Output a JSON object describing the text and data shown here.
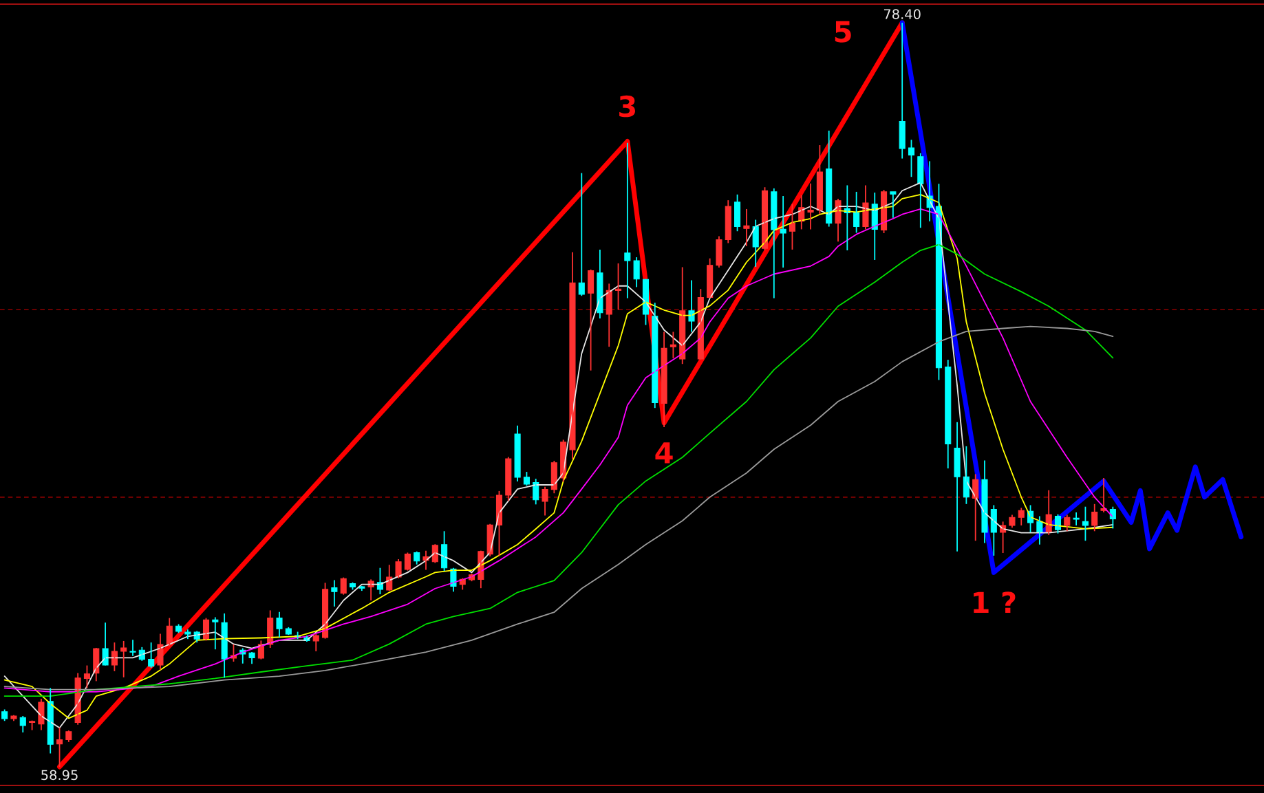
{
  "chart_data": {
    "type": "candlestick",
    "categories": [
      null,
      null,
      null,
      null,
      null,
      null,
      null,
      null,
      null,
      null,
      null,
      null,
      null,
      null,
      null,
      null,
      null,
      null,
      null,
      null,
      null,
      null,
      null,
      null,
      null,
      null,
      null,
      null,
      null,
      null,
      null,
      null,
      null,
      null,
      null,
      null,
      null,
      null,
      null,
      null,
      null,
      null,
      null,
      null,
      null,
      null,
      null,
      null,
      null,
      null,
      null,
      null,
      null,
      null,
      null,
      null,
      null,
      null,
      null,
      null,
      null,
      null,
      null,
      null,
      null,
      null,
      null,
      null,
      null,
      null,
      null,
      null,
      null,
      null,
      null,
      null,
      null,
      null,
      null,
      null,
      null,
      null,
      null,
      null,
      null,
      null,
      null,
      null,
      null,
      null,
      null,
      null,
      null,
      null,
      null,
      null,
      null,
      null,
      null,
      null,
      null,
      null,
      null,
      null,
      null,
      null,
      null,
      null,
      null,
      null,
      null,
      null,
      null,
      null,
      null,
      null,
      null,
      null,
      null,
      null,
      null,
      null,
      null,
      null,
      null,
      null,
      null,
      null,
      null,
      null,
      null,
      null,
      null,
      null,
      null,
      null
    ],
    "ohlc": [
      [
        60.39,
        60.45,
        60.15,
        60.21
      ],
      [
        60.21,
        60.3,
        60.15,
        60.28
      ],
      [
        60.24,
        60.28,
        59.85,
        60.03
      ],
      [
        60.11,
        60.16,
        59.91,
        60.14
      ],
      [
        60.07,
        60.73,
        59.91,
        60.64
      ],
      [
        60.66,
        61.01,
        59.3,
        59.54
      ],
      [
        59.55,
        59.98,
        58.95,
        59.66
      ],
      [
        59.66,
        59.9,
        59.6,
        59.87
      ],
      [
        60.11,
        61.4,
        60.05,
        61.27
      ],
      [
        61.26,
        61.6,
        61.01,
        61.38
      ],
      [
        61.4,
        62.06,
        61.19,
        62.04
      ],
      [
        62.04,
        62.72,
        61.6,
        61.61
      ],
      [
        61.61,
        62.2,
        61.45,
        61.97
      ],
      [
        61.97,
        62.24,
        61.29,
        62.06
      ],
      [
        61.97,
        62.27,
        61.85,
        61.95
      ],
      [
        62.0,
        62.08,
        61.72,
        61.76
      ],
      [
        61.76,
        62.2,
        61.54,
        61.58
      ],
      [
        61.61,
        62.43,
        61.49,
        62.15
      ],
      [
        62.15,
        62.84,
        62.1,
        62.63
      ],
      [
        62.63,
        62.68,
        62.45,
        62.49
      ],
      [
        62.47,
        62.54,
        62.29,
        62.42
      ],
      [
        62.47,
        62.5,
        62.2,
        62.29
      ],
      [
        62.29,
        62.84,
        62.25,
        62.79
      ],
      [
        62.79,
        62.86,
        62.02,
        62.74
      ],
      [
        62.72,
        62.96,
        61.28,
        61.77
      ],
      [
        61.79,
        62.15,
        61.7,
        61.86
      ],
      [
        62.0,
        62.05,
        61.65,
        61.9
      ],
      [
        61.93,
        61.95,
        61.64,
        61.8
      ],
      [
        61.79,
        62.25,
        61.76,
        62.15
      ],
      [
        62.15,
        63.04,
        62.06,
        62.84
      ],
      [
        62.84,
        63.0,
        62.34,
        62.56
      ],
      [
        62.56,
        62.6,
        62.4,
        62.42
      ],
      [
        62.38,
        62.48,
        62.29,
        62.33
      ],
      [
        62.33,
        62.38,
        62.22,
        62.25
      ],
      [
        62.24,
        62.42,
        61.97,
        62.38
      ],
      [
        62.33,
        63.76,
        62.3,
        63.59
      ],
      [
        63.63,
        63.83,
        63.14,
        63.53
      ],
      [
        63.49,
        63.9,
        63.45,
        63.87
      ],
      [
        63.74,
        63.77,
        63.58,
        63.65
      ],
      [
        63.66,
        63.68,
        63.55,
        63.62
      ],
      [
        63.65,
        63.85,
        63.3,
        63.8
      ],
      [
        63.77,
        64.15,
        63.46,
        63.59
      ],
      [
        63.57,
        64.23,
        63.55,
        63.91
      ],
      [
        63.91,
        64.38,
        63.88,
        64.31
      ],
      [
        64.11,
        64.55,
        64.08,
        64.51
      ],
      [
        64.55,
        64.58,
        64.24,
        64.33
      ],
      [
        64.35,
        64.6,
        64.1,
        64.44
      ],
      [
        64.31,
        64.77,
        64.28,
        64.74
      ],
      [
        64.76,
        65.11,
        64.07,
        64.15
      ],
      [
        64.12,
        64.15,
        63.53,
        63.67
      ],
      [
        63.72,
        63.88,
        63.58,
        63.85
      ],
      [
        63.84,
        64.0,
        63.8,
        63.97
      ],
      [
        63.85,
        64.6,
        63.62,
        64.58
      ],
      [
        64.51,
        65.3,
        64.45,
        65.27
      ],
      [
        65.27,
        66.16,
        64.46,
        66.05
      ],
      [
        66.05,
        67.05,
        65.9,
        67.0
      ],
      [
        67.65,
        67.87,
        66.41,
        66.52
      ],
      [
        66.52,
        66.66,
        66.3,
        66.34
      ],
      [
        66.38,
        66.48,
        65.81,
        65.93
      ],
      [
        65.89,
        66.27,
        65.52,
        66.2
      ],
      [
        66.2,
        66.95,
        66.1,
        66.9
      ],
      [
        66.5,
        67.5,
        66.4,
        67.44
      ],
      [
        67.24,
        72.4,
        67.0,
        71.6
      ],
      [
        71.6,
        74.47,
        71.26,
        71.3
      ],
      [
        71.33,
        71.95,
        69.31,
        71.92
      ],
      [
        71.86,
        72.47,
        70.67,
        70.82
      ],
      [
        70.78,
        71.58,
        69.93,
        71.4
      ],
      [
        71.4,
        72.11,
        70.9,
        71.44
      ],
      [
        72.38,
        75.26,
        71.2,
        72.18
      ],
      [
        72.18,
        72.27,
        71.49,
        71.7
      ],
      [
        71.69,
        71.7,
        70.5,
        70.78
      ],
      [
        70.73,
        71.08,
        68.33,
        68.47
      ],
      [
        68.45,
        70.32,
        67.83,
        69.89
      ],
      [
        69.93,
        70.32,
        69.63,
        69.98
      ],
      [
        69.61,
        72.01,
        69.48,
        70.87
      ],
      [
        70.87,
        71.67,
        70.32,
        70.6
      ],
      [
        69.61,
        71.44,
        69.6,
        71.22
      ],
      [
        71.22,
        72.24,
        71.2,
        72.06
      ],
      [
        72.06,
        72.82,
        72.0,
        72.73
      ],
      [
        72.73,
        73.76,
        72.64,
        73.6
      ],
      [
        73.71,
        73.91,
        72.95,
        73.07
      ],
      [
        73.02,
        73.53,
        72.56,
        73.09
      ],
      [
        73.07,
        73.25,
        72.02,
        72.54
      ],
      [
        72.5,
        74.1,
        72.45,
        74.01
      ],
      [
        73.98,
        74.07,
        71.2,
        72.99
      ],
      [
        73.0,
        73.87,
        72.0,
        72.9
      ],
      [
        72.95,
        73.66,
        72.47,
        73.16
      ],
      [
        73.21,
        73.89,
        73.0,
        73.57
      ],
      [
        73.45,
        74.2,
        73.0,
        73.5
      ],
      [
        73.5,
        75.2,
        73.4,
        74.5
      ],
      [
        74.58,
        75.58,
        73.07,
        73.16
      ],
      [
        73.16,
        73.8,
        72.68,
        73.75
      ],
      [
        73.54,
        74.15,
        72.45,
        73.43
      ],
      [
        73.44,
        73.98,
        72.91,
        73.07
      ],
      [
        73.07,
        74.15,
        73.0,
        73.69
      ],
      [
        73.66,
        73.96,
        72.2,
        73.0
      ],
      [
        72.98,
        74.03,
        72.9,
        73.98
      ],
      [
        73.98,
        73.98,
        73.3,
        73.92
      ],
      [
        75.82,
        78.4,
        74.85,
        75.11
      ],
      [
        75.13,
        75.34,
        74.37,
        74.94
      ],
      [
        74.9,
        74.99,
        73.04,
        74.19
      ],
      [
        73.87,
        74.78,
        73.21,
        73.57
      ],
      [
        73.6,
        74.19,
        69.06,
        69.38
      ],
      [
        69.4,
        69.59,
        66.75,
        67.39
      ],
      [
        67.28,
        67.96,
        64.58,
        66.53
      ],
      [
        66.53,
        67.33,
        65.82,
        66.0
      ],
      [
        65.97,
        66.6,
        64.86,
        66.46
      ],
      [
        66.46,
        66.96,
        64.8,
        65.08
      ],
      [
        65.68,
        65.79,
        64.47,
        65.08
      ],
      [
        65.08,
        65.36,
        64.54,
        65.26
      ],
      [
        65.26,
        65.54,
        65.2,
        65.47
      ],
      [
        65.47,
        65.72,
        65.26,
        65.65
      ],
      [
        65.63,
        65.79,
        65.08,
        65.33
      ],
      [
        65.36,
        65.5,
        64.76,
        65.08
      ],
      [
        65.08,
        66.18,
        65.01,
        65.54
      ],
      [
        65.5,
        65.55,
        65.05,
        65.15
      ],
      [
        65.26,
        65.54,
        65.11,
        65.47
      ],
      [
        65.45,
        65.6,
        65.26,
        65.42
      ],
      [
        65.36,
        65.75,
        64.86,
        65.26
      ],
      [
        65.26,
        65.82,
        65.11,
        65.61
      ],
      [
        65.65,
        66.5,
        65.6,
        65.7
      ],
      [
        65.68,
        65.75,
        65.18,
        65.43
      ],
      null,
      null,
      null,
      null,
      null,
      null,
      null,
      null,
      null,
      null,
      null,
      null,
      null,
      null
    ],
    "colors": [
      "#00ffff",
      "#ff3232",
      "#00ffff",
      "#ff3232",
      "#ff3232",
      "#00ffff",
      "#ff3232",
      "#ff3232",
      "#ff3232",
      "#ff3232",
      "#ff3232",
      "#00ffff",
      "#ff3232",
      "#ff3232",
      "#00ffff",
      "#00ffff",
      "#00ffff",
      "#ff3232",
      "#ff3232",
      "#00ffff",
      "#00ffff",
      "#00ffff",
      "#ff3232",
      "#00ffff",
      "#00ffff",
      "#ff3232",
      "#00ffff",
      "#00ffff",
      "#ff3232",
      "#ff3232",
      "#00ffff",
      "#00ffff",
      "#00ffff",
      "#00ffff",
      "#ff3232",
      "#ff3232",
      "#00ffff",
      "#ff3232",
      "#00ffff",
      "#00ffff",
      "#ff3232",
      "#00ffff",
      "#ff3232",
      "#ff3232",
      "#ff3232",
      "#00ffff",
      "#ff3232",
      "#ff3232",
      "#00ffff",
      "#00ffff",
      "#ff3232",
      "#ff3232",
      "#ff3232",
      "#ff3232",
      "#ff3232",
      "#ff3232",
      "#00ffff",
      "#00ffff",
      "#00ffff",
      "#ff3232",
      "#ff3232",
      "#ff3232",
      "#ff3232",
      "#00ffff",
      "#ff3232",
      "#00ffff",
      "#ff3232",
      "#ff3232",
      "#00ffff",
      "#00ffff",
      "#00ffff",
      "#00ffff",
      "#ff3232",
      "#ff3232",
      "#ff3232",
      "#00ffff",
      "#ff3232",
      "#ff3232",
      "#ff3232",
      "#ff3232",
      "#00ffff",
      "#ff3232",
      "#00ffff",
      "#ff3232",
      "#00ffff",
      "#00ffff",
      "#ff3232",
      "#ff3232",
      "#ff3232",
      "#ff3232",
      "#00ffff",
      "#ff3232",
      "#00ffff",
      "#00ffff",
      "#ff3232",
      "#00ffff",
      "#ff3232",
      "#00ffff",
      "#00ffff",
      "#00ffff",
      "#00ffff",
      "#00ffff",
      "#00ffff",
      "#00ffff",
      "#00ffff",
      "#00ffff",
      "#ff3232",
      "#00ffff",
      "#00ffff",
      "#ff3232",
      "#ff3232",
      "#ff3232",
      "#00ffff",
      "#00ffff",
      "#ff3232",
      "#00ffff",
      "#ff3232",
      "#00ffff",
      "#00ffff",
      "#ff3232",
      "#ff3232",
      "#00ffff",
      null,
      null,
      null,
      null,
      null,
      null,
      null,
      null,
      null,
      null,
      null,
      null,
      null,
      null
    ],
    "series": [
      {
        "type": "line",
        "color": "#e6e6e6",
        "values": [
          61.32,
          null,
          60.8,
          null,
          60.28,
          null,
          59.97,
          null,
          60.6,
          null,
          61.53,
          61.8,
          null,
          null,
          61.8,
          null,
          null,
          62.05,
          null,
          null,
          62.36,
          null,
          null,
          62.47,
          null,
          62.16,
          null,
          62.05,
          null,
          null,
          62.26,
          null,
          null,
          62.26,
          null,
          62.68,
          null,
          63.3,
          null,
          63.72,
          null,
          63.72,
          null,
          null,
          64.03,
          null,
          64.34,
          64.55,
          null,
          64.34,
          null,
          64.03,
          null,
          64.55,
          65.59,
          null,
          66.21,
          null,
          66.32,
          null,
          66.32,
          66.63,
          null,
          69.75,
          null,
          71.2,
          null,
          71.52,
          71.52,
          null,
          71.1,
          null,
          70.37,
          null,
          69.96,
          null,
          70.58,
          71.2,
          null,
          71.93,
          null,
          72.66,
          73.08,
          null,
          73.28,
          null,
          73.39,
          null,
          73.6,
          null,
          73.39,
          73.6,
          null,
          73.6,
          null,
          73.49,
          null,
          73.7,
          74.01,
          null,
          74.22,
          null,
          73.28,
          null,
          68.92,
          66.42,
          null,
          65.59,
          null,
          65.17,
          null,
          65.07,
          null,
          null,
          65.07,
          null,
          null,
          null,
          65.17,
          null,
          null,
          65.28,
          null,
          null,
          null,
          null,
          null,
          null,
          null,
          null,
          null,
          null,
          null,
          null,
          null,
          null
        ]
      },
      {
        "type": "line",
        "color": "#ffff00",
        "values": [
          61.22,
          null,
          null,
          61.05,
          null,
          60.6,
          null,
          60.22,
          null,
          60.43,
          60.8,
          null,
          null,
          61.01,
          null,
          null,
          61.32,
          null,
          61.64,
          null,
          null,
          62.26,
          null,
          null,
          62.3,
          null,
          null,
          null,
          62.32,
          null,
          null,
          null,
          62.36,
          null,
          null,
          62.57,
          null,
          null,
          null,
          63.09,
          null,
          null,
          63.51,
          null,
          null,
          null,
          63.92,
          64.03,
          null,
          64.09,
          null,
          64.09,
          null,
          64.34,
          null,
          null,
          64.76,
          null,
          65.17,
          null,
          65.59,
          66.42,
          null,
          67.46,
          null,
          68.71,
          null,
          69.96,
          70.79,
          null,
          71.1,
          null,
          70.89,
          null,
          70.75,
          70.75,
          null,
          71.0,
          null,
          71.41,
          null,
          72.14,
          null,
          72.66,
          72.97,
          null,
          73.18,
          null,
          73.28,
          73.39,
          null,
          73.49,
          null,
          73.45,
          null,
          73.53,
          null,
          73.6,
          73.8,
          null,
          73.91,
          null,
          73.7,
          null,
          72.24,
          70.58,
          null,
          68.71,
          null,
          67.25,
          null,
          66.0,
          65.48,
          null,
          65.28,
          null,
          null,
          null,
          65.17,
          null,
          null,
          65.21,
          null,
          null,
          null,
          null,
          null,
          null,
          null,
          null,
          null,
          null,
          null,
          null,
          null,
          null
        ]
      },
      {
        "type": "line",
        "color": "#ff00ff",
        "values": [
          61.01,
          null,
          null,
          null,
          null,
          60.91,
          null,
          null,
          null,
          null,
          60.91,
          null,
          null,
          null,
          null,
          null,
          61.05,
          null,
          null,
          61.32,
          null,
          null,
          null,
          61.64,
          null,
          null,
          61.95,
          null,
          null,
          null,
          62.26,
          null,
          null,
          62.36,
          null,
          null,
          null,
          62.68,
          null,
          null,
          62.88,
          null,
          null,
          null,
          63.2,
          null,
          null,
          63.61,
          null,
          null,
          null,
          63.92,
          null,
          null,
          64.34,
          null,
          null,
          null,
          64.96,
          null,
          null,
          65.59,
          null,
          66.21,
          null,
          66.84,
          null,
          67.56,
          68.4,
          null,
          69.12,
          null,
          69.44,
          null,
          69.75,
          null,
          70.16,
          70.58,
          null,
          71.2,
          null,
          71.52,
          null,
          null,
          71.83,
          null,
          null,
          null,
          72.04,
          null,
          72.29,
          72.56,
          null,
          72.87,
          null,
          73.08,
          null,
          73.28,
          73.39,
          null,
          73.53,
          null,
          73.39,
          null,
          null,
          72.04,
          null,
          null,
          null,
          70.16,
          null,
          null,
          68.5,
          null,
          null,
          null,
          67.04,
          null,
          null,
          66.0,
          null,
          65.48,
          null,
          null,
          null,
          null,
          null,
          null,
          null,
          null,
          null,
          null,
          null,
          null,
          null,
          null
        ]
      },
      {
        "type": "line",
        "color": "#00e000",
        "values": [
          60.8,
          null,
          null,
          null,
          null,
          60.8,
          null,
          null,
          null,
          null,
          60.97,
          null,
          null,
          null,
          null,
          null,
          null,
          null,
          61.12,
          null,
          null,
          null,
          null,
          61.26,
          null,
          null,
          null,
          null,
          61.43,
          null,
          null,
          null,
          null,
          61.59,
          null,
          null,
          null,
          null,
          61.74,
          null,
          null,
          null,
          62.16,
          null,
          null,
          null,
          62.68,
          null,
          null,
          62.88,
          null,
          null,
          null,
          63.09,
          null,
          null,
          63.51,
          null,
          null,
          null,
          63.82,
          null,
          null,
          64.55,
          null,
          null,
          null,
          65.8,
          null,
          null,
          66.42,
          null,
          null,
          null,
          67.04,
          null,
          null,
          67.67,
          null,
          null,
          null,
          68.5,
          null,
          null,
          69.33,
          null,
          null,
          null,
          70.16,
          null,
          null,
          70.99,
          null,
          null,
          null,
          71.62,
          null,
          null,
          72.14,
          null,
          72.45,
          null,
          72.6,
          null,
          72.35,
          null,
          null,
          71.83,
          null,
          null,
          null,
          71.37,
          null,
          null,
          70.99,
          null,
          null,
          null,
          70.37,
          null,
          null,
          69.64,
          null,
          null,
          null,
          null,
          null,
          null,
          null,
          null,
          null,
          null,
          null,
          null,
          null,
          null
        ]
      },
      {
        "type": "line",
        "color": "#9a9a9a",
        "values": [
          61.05,
          null,
          null,
          null,
          null,
          60.97,
          null,
          null,
          null,
          null,
          60.97,
          null,
          null,
          null,
          null,
          null,
          null,
          null,
          61.05,
          null,
          null,
          null,
          null,
          null,
          61.22,
          null,
          null,
          null,
          null,
          null,
          61.32,
          null,
          null,
          null,
          null,
          61.47,
          null,
          null,
          null,
          null,
          61.68,
          null,
          null,
          null,
          null,
          null,
          61.95,
          null,
          null,
          null,
          null,
          62.26,
          null,
          null,
          null,
          null,
          62.68,
          null,
          null,
          null,
          62.99,
          null,
          null,
          63.61,
          null,
          null,
          null,
          64.24,
          null,
          null,
          64.76,
          null,
          null,
          null,
          65.38,
          null,
          null,
          66.0,
          null,
          null,
          null,
          66.63,
          null,
          null,
          67.25,
          null,
          null,
          null,
          67.88,
          null,
          null,
          68.5,
          null,
          null,
          null,
          69.02,
          null,
          null,
          69.54,
          null,
          null,
          null,
          70.06,
          null,
          null,
          70.33,
          null,
          null,
          null,
          70.41,
          null,
          null,
          70.46,
          null,
          null,
          null,
          70.41,
          null,
          null,
          70.33,
          null,
          70.2,
          null,
          null,
          null,
          null,
          null,
          null,
          null,
          null,
          null,
          null,
          null,
          null,
          null,
          null
        ]
      },
      {
        "type": "line",
        "color": "#ff0000",
        "values": [
          null,
          null,
          null,
          null,
          null,
          null,
          58.95,
          null,
          null,
          null,
          null,
          null,
          null,
          null,
          null,
          null,
          null,
          null,
          null,
          null,
          null,
          null,
          null,
          null,
          null,
          null,
          null,
          null,
          null,
          null,
          null,
          null,
          null,
          null,
          null,
          null,
          null,
          null,
          null,
          null,
          null,
          null,
          null,
          null,
          null,
          null,
          null,
          null,
          null,
          null,
          null,
          null,
          null,
          null,
          null,
          null,
          null,
          null,
          null,
          null,
          null,
          null,
          null,
          null,
          null,
          null,
          null,
          null,
          75.3,
          null,
          null,
          null,
          67.94,
          null,
          null,
          null,
          null,
          null,
          null,
          null,
          null,
          null,
          null,
          null,
          null,
          null,
          null,
          null,
          null,
          null,
          null,
          null,
          null,
          null,
          null,
          null,
          null,
          null,
          78.4,
          null,
          null,
          null,
          null,
          null,
          null,
          null,
          null,
          null,
          null,
          null,
          null,
          null,
          null,
          null,
          null,
          null,
          null,
          null,
          null,
          null,
          null,
          null,
          null,
          null,
          null,
          null,
          null,
          null,
          null,
          null,
          null,
          null,
          null,
          null,
          null,
          null
        ]
      },
      {
        "type": "line",
        "color": "#0000ff",
        "values": [
          null,
          null,
          null,
          null,
          null,
          null,
          null,
          null,
          null,
          null,
          null,
          null,
          null,
          null,
          null,
          null,
          null,
          null,
          null,
          null,
          null,
          null,
          null,
          null,
          null,
          null,
          null,
          null,
          null,
          null,
          null,
          null,
          null,
          null,
          null,
          null,
          null,
          null,
          null,
          null,
          null,
          null,
          null,
          null,
          null,
          null,
          null,
          null,
          null,
          null,
          null,
          null,
          null,
          null,
          null,
          null,
          null,
          null,
          null,
          null,
          null,
          null,
          null,
          null,
          null,
          null,
          null,
          null,
          null,
          null,
          null,
          null,
          null,
          null,
          null,
          null,
          null,
          null,
          null,
          null,
          null,
          null,
          null,
          null,
          null,
          null,
          null,
          null,
          null,
          null,
          null,
          null,
          null,
          null,
          null,
          null,
          null,
          null,
          78.4,
          null,
          null,
          null,
          null,
          null,
          null,
          null,
          null,
          null,
          64.03,
          null,
          null,
          null,
          null,
          null,
          null,
          null,
          null,
          null,
          null,
          null,
          66.42,
          null,
          null,
          65.34,
          66.17,
          64.65,
          null,
          65.59,
          65.13,
          null,
          66.79,
          66.0,
          null,
          66.46,
          null,
          64.96
        ]
      }
    ],
    "ref_lines": [
      {
        "axis": "y",
        "value": 70.9,
        "color": "#8b0000",
        "line_style": "dashed"
      },
      {
        "axis": "y",
        "value": 66.0,
        "color": "#8b0000",
        "line_style": "dashed"
      }
    ],
    "annotations": [
      {
        "text": "78.40",
        "y": 78.4
      },
      {
        "text": "58.95",
        "y": 58.95
      },
      {
        "text": "3",
        "y": 75.3
      },
      {
        "text": "4",
        "y": 67.94
      },
      "5",
      {
        "text": "1 ?",
        "y": 64.03
      }
    ],
    "legend": false
  }
}
